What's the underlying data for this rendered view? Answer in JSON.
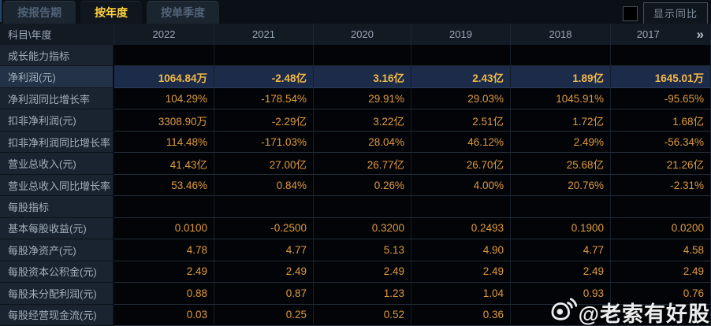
{
  "tabs": {
    "items": [
      {
        "label": "按报告期",
        "active": false
      },
      {
        "label": "按年度",
        "active": true
      },
      {
        "label": "按单季度",
        "active": false
      }
    ]
  },
  "controls": {
    "show_yoy_label": "显示同比",
    "checkbox_checked": false
  },
  "table": {
    "corner_header": "科目\\年度",
    "year_columns": [
      "2022",
      "2021",
      "2020",
      "2019",
      "2018",
      "2017"
    ],
    "more_columns_icon": "»",
    "rows": [
      {
        "type": "section",
        "label": "成长能力指标",
        "values": [
          "",
          "",
          "",
          "",
          "",
          ""
        ]
      },
      {
        "type": "data",
        "highlight": true,
        "label": "净利润(元)",
        "values": [
          "1064.84万",
          "-2.48亿",
          "3.16亿",
          "2.43亿",
          "1.89亿",
          "1645.01万"
        ]
      },
      {
        "type": "data",
        "label": "净利润同比增长率",
        "values": [
          "104.29%",
          "-178.54%",
          "29.91%",
          "29.03%",
          "1045.91%",
          "-95.65%"
        ]
      },
      {
        "type": "data",
        "label": "扣非净利润(元)",
        "values": [
          "3308.90万",
          "-2.29亿",
          "3.22亿",
          "2.51亿",
          "1.72亿",
          "1.68亿"
        ]
      },
      {
        "type": "data",
        "label": "扣非净利润同比增长率",
        "values": [
          "114.48%",
          "-171.03%",
          "28.04%",
          "46.12%",
          "2.49%",
          "-56.34%"
        ]
      },
      {
        "type": "data",
        "label": "营业总收入(元)",
        "values": [
          "41.43亿",
          "27.00亿",
          "26.77亿",
          "26.70亿",
          "25.68亿",
          "21.26亿"
        ]
      },
      {
        "type": "data",
        "label": "营业总收入同比增长率",
        "values": [
          "53.46%",
          "0.84%",
          "0.26%",
          "4.00%",
          "20.76%",
          "-2.31%"
        ]
      },
      {
        "type": "section",
        "label": "每股指标",
        "values": [
          "",
          "",
          "",
          "",
          "",
          ""
        ]
      },
      {
        "type": "data",
        "label": "基本每股收益(元)",
        "values": [
          "0.0100",
          "-0.2500",
          "0.3200",
          "0.2493",
          "0.1900",
          "0.0200"
        ]
      },
      {
        "type": "data",
        "label": "每股净资产(元)",
        "values": [
          "4.78",
          "4.77",
          "5.13",
          "4.90",
          "4.77",
          "4.58"
        ]
      },
      {
        "type": "data",
        "label": "每股资本公积金(元)",
        "values": [
          "2.49",
          "2.49",
          "2.49",
          "2.49",
          "2.49",
          "2.49"
        ]
      },
      {
        "type": "data",
        "label": "每股未分配利润(元)",
        "values": [
          "0.88",
          "0.87",
          "1.23",
          "1.04",
          "0.93",
          "0.76"
        ]
      },
      {
        "type": "data",
        "label": "每股经营现金流(元)",
        "values": [
          "0.03",
          "0.25",
          "0.52",
          "0.36",
          "",
          ""
        ]
      }
    ]
  },
  "watermark": {
    "text": "@老索有好股",
    "icon": "weibo-eye-icon"
  },
  "colors": {
    "background": "#0a0e14",
    "tab_active_text": "#ffd23e",
    "tab_inactive_text": "#51637a",
    "header_bg": "#121a24",
    "label_cell_bg": "#1a2430",
    "value_text": "#e09a3c",
    "highlight_row_bg": "#1c2b49",
    "highlight_value_text": "#f2b848",
    "watermark_text": "#ffffff"
  }
}
